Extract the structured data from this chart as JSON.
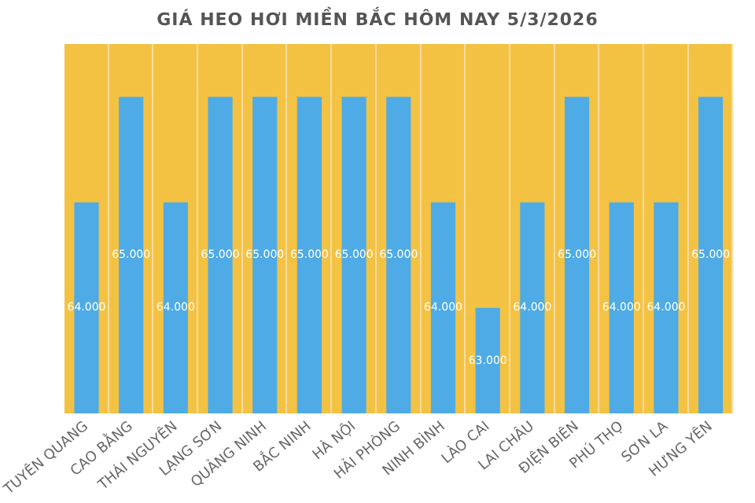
{
  "chart_data": {
    "type": "bar",
    "title": "GIÁ HEO HƠI MIỀN BẮC HÔM NAY 5/3/2026",
    "categories": [
      "TUYÊN QUANG",
      "CAO BẰNG",
      "THÁI NGUYÊN",
      "LẠNG SƠN",
      "QUẢNG NINH",
      "BẮC NINH",
      "HÀ NỘI",
      "HẢI PHÒNG",
      "NINH BÌNH",
      "LÀO CAI",
      "LAI CHÂU",
      "ĐIỆN BIÊN",
      "PHÚ THỌ",
      "SƠN LA",
      "HƯNG YÊN"
    ],
    "values": [
      64000,
      65000,
      64000,
      65000,
      65000,
      65000,
      65000,
      65000,
      64000,
      63000,
      64000,
      65000,
      64000,
      64000,
      65000
    ],
    "value_labels": [
      "64.000",
      "65.000",
      "64.000",
      "65.000",
      "65.000",
      "65.000",
      "65.000",
      "65.000",
      "64.000",
      "63.000",
      "64.000",
      "65.000",
      "64.000",
      "64.000",
      "65.000"
    ],
    "color": "#4eabe6",
    "tick_labels": "x"
  }
}
